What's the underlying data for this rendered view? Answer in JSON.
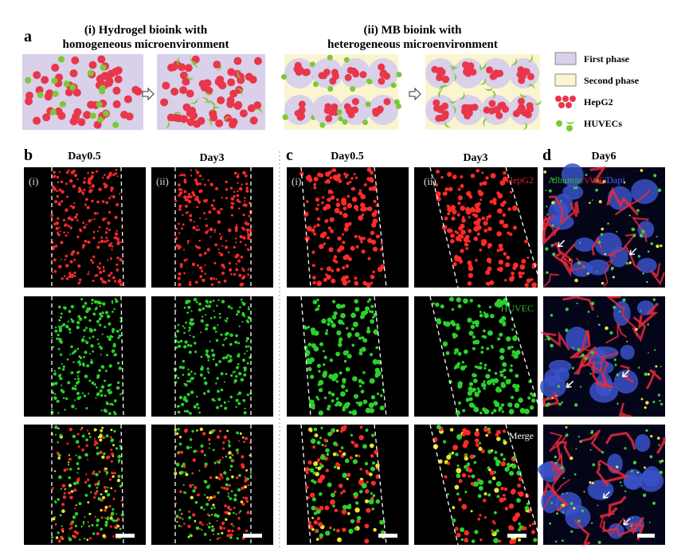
{
  "panel_a": {
    "label": "a",
    "left_title": [
      "(i) Hydrogel bioink with",
      "homogeneous microenvironment"
    ],
    "right_title": [
      "(ii) MB bioink with",
      "heterogeneous microenvironment"
    ],
    "legend": [
      "First phase",
      "Second phase",
      "HepG2",
      "HUVECs"
    ]
  },
  "panel_b": {
    "label": "b",
    "columns": [
      "Day0.5",
      "Day3"
    ],
    "tags": [
      "(i)",
      "(ii)"
    ]
  },
  "panel_c": {
    "label": "c",
    "columns": [
      "Day0.5",
      "Day3"
    ],
    "tags": [
      "(i)",
      "(ii)"
    ],
    "channels": [
      "HepG2",
      "HUVEC",
      "Merge"
    ]
  },
  "panel_d": {
    "label": "d",
    "column": "Day6",
    "stain": [
      "Albumin",
      "/vWF",
      "/Dapi"
    ]
  }
}
